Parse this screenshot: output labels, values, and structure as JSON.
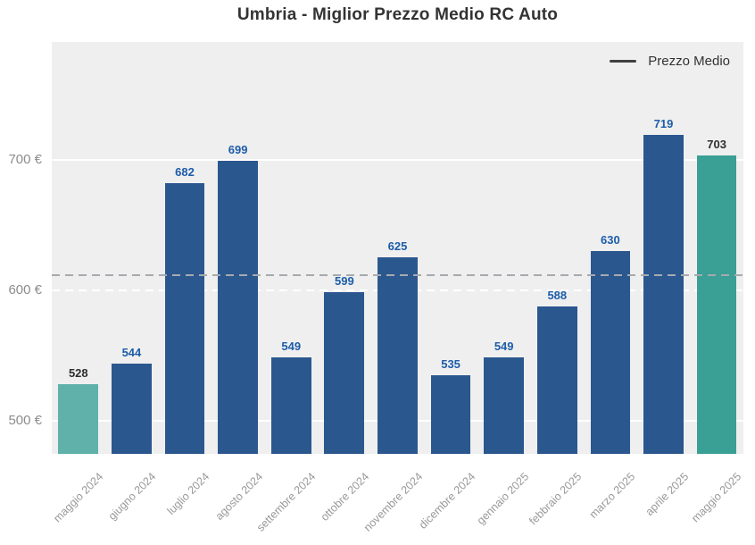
{
  "title": "Umbria - Miglior Prezzo Medio RC Auto",
  "legend": {
    "label": "Prezzo Medio"
  },
  "colors": {
    "bar_blue": "#2b578f",
    "bar_teal_first": "#5fb1a9",
    "bar_teal_last": "#3a9f95",
    "value_label_blue": "#1d5da9",
    "value_label_dark": "#2e2e2e",
    "plot_background": "#efefef",
    "gridline": "#ffffff",
    "average_line": "#a6aaae",
    "axis_text": "#8c8c8c",
    "xtick_text": "#999999",
    "title_text": "#333333",
    "legend_marker": "#404040"
  },
  "chart_data": {
    "type": "bar",
    "title": "Umbria - Miglior Prezzo Medio RC Auto",
    "categories": [
      "maggio 2024",
      "giugno 2024",
      "luglio 2024",
      "agosto 2024",
      "settembre 2024",
      "ottobre 2024",
      "novembre 2024",
      "dicembre 2024",
      "gennaio 2025",
      "febbraio 2025",
      "marzo 2025",
      "aprile 2025",
      "maggio 2025"
    ],
    "series": [
      {
        "name": "Prezzo Medio",
        "values": [
          528,
          544,
          682,
          699,
          549,
          599,
          625,
          535,
          549,
          588,
          630,
          719,
          703
        ]
      }
    ],
    "bar_colors": [
      "#5fb1a9",
      "#2b578f",
      "#2b578f",
      "#2b578f",
      "#2b578f",
      "#2b578f",
      "#2b578f",
      "#2b578f",
      "#2b578f",
      "#2b578f",
      "#2b578f",
      "#2b578f",
      "#3a9f95"
    ],
    "value_label_colors": [
      "#2e2e2e",
      "#1d5da9",
      "#1d5da9",
      "#1d5da9",
      "#1d5da9",
      "#1d5da9",
      "#1d5da9",
      "#1d5da9",
      "#1d5da9",
      "#1d5da9",
      "#1d5da9",
      "#1d5da9",
      "#2e2e2e"
    ],
    "xlabel": "",
    "ylabel": "",
    "ylim": [
      475,
      790
    ],
    "yticks": [
      {
        "value": 500,
        "label": "500 €",
        "style": "solid"
      },
      {
        "value": 600,
        "label": "600 €",
        "style": "dashed"
      },
      {
        "value": 700,
        "label": "700 €",
        "style": "solid"
      }
    ],
    "average_line": 611.5,
    "grid": true,
    "legend_entries": [
      "Prezzo Medio"
    ],
    "legend_position": "top-right"
  }
}
